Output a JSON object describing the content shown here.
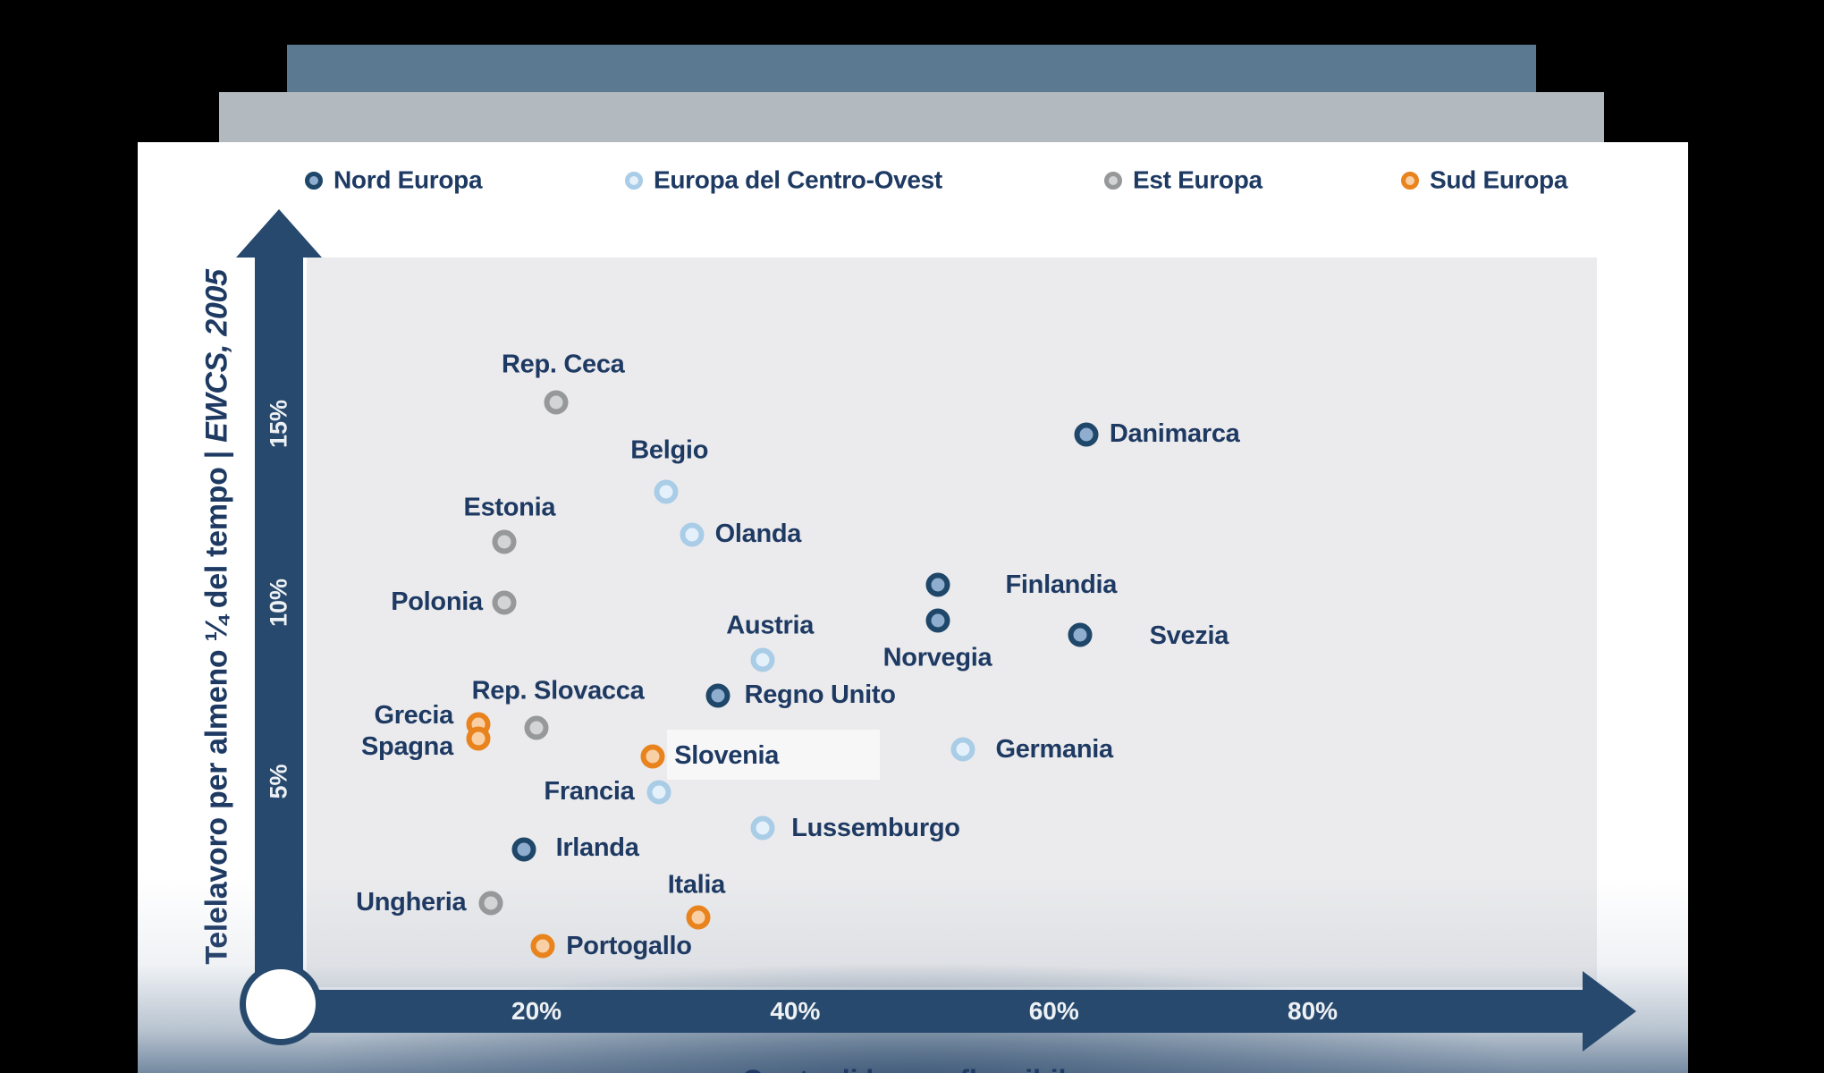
{
  "groups": {
    "nord": {
      "label": "Nord Europa",
      "ring": "#1f4769",
      "fill": "#8fadce"
    },
    "centro": {
      "label": "Europa del Centro-Ovest",
      "ring": "#a9cce7",
      "fill": "#e4f0fa"
    },
    "est": {
      "label": "Est Europa",
      "ring": "#97989a",
      "fill": "#d3d4d6"
    },
    "sud": {
      "label": "Sud Europa",
      "ring": "#e8831d",
      "fill": "#f9d0a5"
    }
  },
  "legend_order": [
    "nord",
    "centro",
    "est",
    "sud"
  ],
  "y_axis": {
    "title": "Telelavoro per almeno ¼ del tempo",
    "separator": "|",
    "source": "EWCS, 2005",
    "ticks": [
      {
        "label": "15%",
        "value": 15
      },
      {
        "label": "10%",
        "value": 10
      },
      {
        "label": "5%",
        "value": 5
      }
    ]
  },
  "x_axis": {
    "ticks": [
      {
        "label": "20%",
        "value": 20
      },
      {
        "label": "40%",
        "value": 40
      },
      {
        "label": "60%",
        "value": 60
      },
      {
        "label": "80%",
        "value": 80
      }
    ],
    "title_partial": "Quota di lavoro flessibile"
  },
  "chart_data": {
    "type": "scatter",
    "title": "",
    "xlabel": "Quota di lavoro flessibile (%)",
    "ylabel": "Telelavoro per almeno ¼ del tempo | EWCS, 2005",
    "xlim": [
      0,
      100
    ],
    "ylim": [
      0,
      18
    ],
    "grid": false,
    "legend_position": "top",
    "series": [
      {
        "name": "Nord Europa",
        "group": "nord",
        "points": [
          {
            "name": "Danimarca",
            "x": 62.5,
            "y": 14.7,
            "label": {
              "side": "right",
              "dx": 26,
              "dy": 0
            }
          },
          {
            "name": "Finlandia",
            "x": 51,
            "y": 10.5,
            "label": {
              "side": "right",
              "dx": 76,
              "dy": 1
            }
          },
          {
            "name": "Norvegia",
            "x": 51,
            "y": 9.5,
            "label": {
              "side": "below",
              "dx": 0,
              "dy": 42
            }
          },
          {
            "name": "Svezia",
            "x": 62,
            "y": 9.1,
            "label": {
              "side": "right",
              "dx": 78,
              "dy": 2
            }
          },
          {
            "name": "Regno Unito",
            "x": 34,
            "y": 7.4,
            "label": {
              "side": "right",
              "dx": 30,
              "dy": 0
            }
          },
          {
            "name": "Irlanda",
            "x": 19,
            "y": 3.1,
            "label": {
              "side": "right",
              "dx": 36,
              "dy": -1
            }
          }
        ]
      },
      {
        "name": "Europa del Centro-Ovest",
        "group": "centro",
        "points": [
          {
            "name": "Belgio",
            "x": 30,
            "y": 13.1,
            "label": {
              "side": "above",
              "dx": 4,
              "dy": -46
            }
          },
          {
            "name": "Olanda",
            "x": 32,
            "y": 11.9,
            "label": {
              "side": "right",
              "dx": 26,
              "dy": 0
            }
          },
          {
            "name": "Austria",
            "x": 37.5,
            "y": 8.4,
            "label": {
              "side": "above",
              "dx": 8,
              "dy": -38
            }
          },
          {
            "name": "Germania",
            "x": 53,
            "y": 5.9,
            "label": {
              "side": "right",
              "dx": 36,
              "dy": 1
            }
          },
          {
            "name": "Francia",
            "x": 29.5,
            "y": 4.7,
            "label": {
              "side": "left",
              "dx": -28,
              "dy": 0
            }
          },
          {
            "name": "Lussemburgo",
            "x": 37.5,
            "y": 3.7,
            "label": {
              "side": "right",
              "dx": 32,
              "dy": 1
            }
          }
        ]
      },
      {
        "name": "Est Europa",
        "group": "est",
        "points": [
          {
            "name": "Rep. Ceca",
            "x": 21.5,
            "y": 15.6,
            "label": {
              "side": "above",
              "dx": 8,
              "dy": -42
            }
          },
          {
            "name": "Estonia",
            "x": 17.5,
            "y": 11.7,
            "label": {
              "side": "above",
              "dx": 6,
              "dy": -38
            }
          },
          {
            "name": "Polonia",
            "x": 17.5,
            "y": 10.0,
            "label": {
              "side": "left",
              "dx": -24,
              "dy": 0
            }
          },
          {
            "name": "Rep. Slovacca",
            "x": 20,
            "y": 6.5,
            "label": {
              "side": "above",
              "dx": 24,
              "dy": -41
            }
          },
          {
            "name": "Ungheria",
            "x": 16.5,
            "y": 1.6,
            "label": {
              "side": "left",
              "dx": -28,
              "dy": 0
            }
          }
        ]
      },
      {
        "name": "Sud Europa",
        "group": "sud",
        "points": [
          {
            "name": "Grecia",
            "x": 15.5,
            "y": 6.6,
            "label": {
              "side": "left",
              "dx": -28,
              "dy": -9
            }
          },
          {
            "name": "Spagna",
            "x": 15.5,
            "y": 6.2,
            "label": {
              "side": "left",
              "dx": -28,
              "dy": 10
            }
          },
          {
            "name": "Slovenia",
            "x": 29,
            "y": 5.7,
            "label": {
              "side": "right",
              "dx": 24,
              "dy": 0
            }
          },
          {
            "name": "Italia",
            "x": 32.5,
            "y": 1.2,
            "label": {
              "side": "above",
              "dx": -2,
              "dy": -36
            }
          },
          {
            "name": "Portogallo",
            "x": 20.5,
            "y": 0.4,
            "label": {
              "side": "right",
              "dx": 26,
              "dy": 1
            }
          }
        ]
      }
    ]
  }
}
